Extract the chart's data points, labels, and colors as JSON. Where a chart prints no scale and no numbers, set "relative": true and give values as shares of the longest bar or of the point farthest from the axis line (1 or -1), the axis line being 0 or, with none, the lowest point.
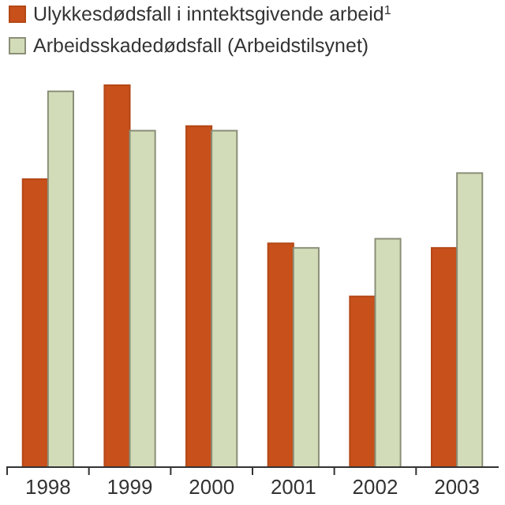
{
  "chart_data": {
    "type": "bar",
    "relative": true,
    "categories": [
      "1998",
      "1999",
      "2000",
      "2001",
      "2002",
      "2003"
    ],
    "legend": "top left",
    "series": [
      {
        "name": "Ulykkesdødsfall i inntektsgivende arbeid$^{1}$",
        "color": "#c8501a",
        "values": [
          0.754,
          1,
          0.893,
          0.586,
          0.447,
          0.574
        ]
      },
      {
        "name": "Arbeidsskadedødsfall (Arbeidstilsynet)",
        "color": "#d3dcb8",
        "values": [
          0.984,
          0.881,
          0.881,
          0.574,
          0.598,
          0.77
        ]
      }
    ]
  }
}
